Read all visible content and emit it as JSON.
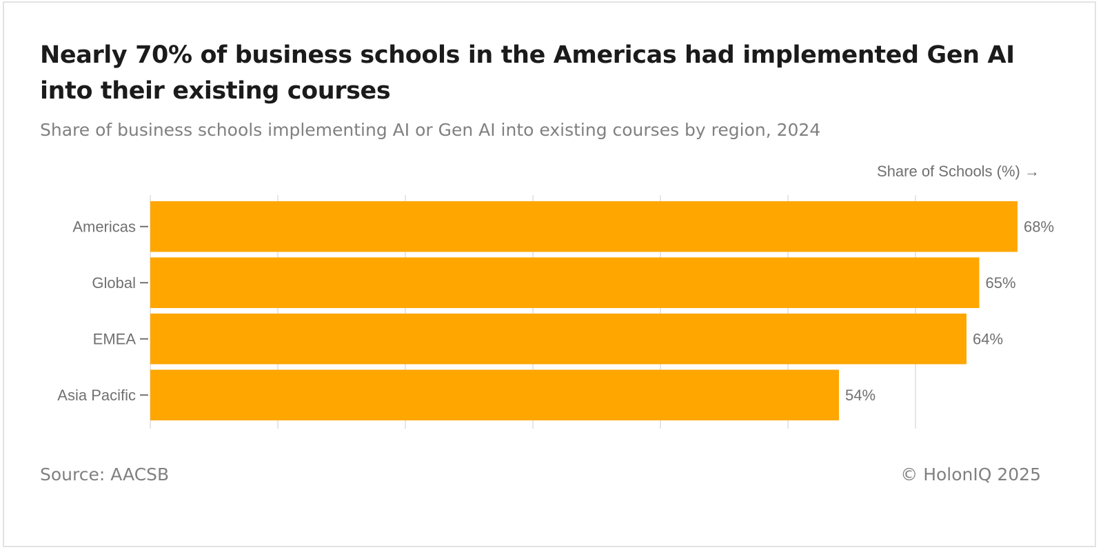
{
  "title": "Nearly 70% of business schools in the Americas had implemented Gen AI into their existing courses",
  "subtitle": "Share of business schools implementing AI or Gen AI into existing courses by region, 2024",
  "source": "Source: AACSB",
  "copyright": "© HolonIQ 2025",
  "colors": {
    "bar": "#FFA600",
    "grid": "#e6e6e6",
    "axis_text": "#707070",
    "tick": "#707070"
  },
  "chart_data": {
    "type": "bar",
    "orientation": "horizontal",
    "title": "Nearly 70% of business schools in the Americas had implemented Gen AI into their existing courses",
    "subtitle": "Share of business schools implementing AI or Gen AI into existing courses by region, 2024",
    "xlabel": "Share of Schools (%) →",
    "ylabel": "",
    "categories": [
      "Americas",
      "Global",
      "EMEA",
      "Asia Pacific"
    ],
    "values": [
      68,
      65,
      64,
      54
    ],
    "value_labels": [
      "68%",
      "65%",
      "64%",
      "54%"
    ],
    "unit": "%",
    "xlim": [
      0,
      70
    ],
    "grid_ticks": [
      0,
      10,
      20,
      30,
      40,
      50,
      60
    ],
    "grid": true,
    "legend": "none"
  }
}
